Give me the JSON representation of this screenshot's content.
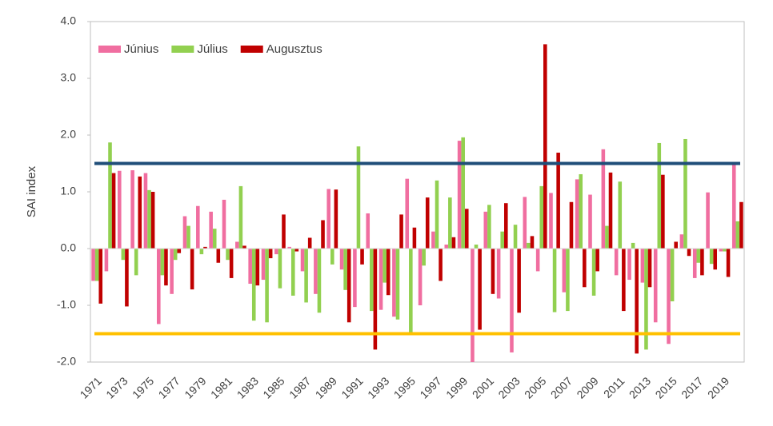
{
  "chart_data": {
    "type": "bar",
    "y_label": "SAI index",
    "categories": [
      "1971",
      null,
      "1973",
      null,
      "1975",
      null,
      "1977",
      null,
      "1979",
      null,
      "1981",
      null,
      "1983",
      null,
      "1985",
      null,
      "1987",
      null,
      "1989",
      null,
      "1991",
      null,
      "1993",
      null,
      "1995",
      null,
      "1997",
      null,
      "1999",
      null,
      "2001",
      null,
      "2003",
      null,
      "2005",
      null,
      "2007",
      null,
      "2009",
      null,
      "2011",
      null,
      "2013",
      null,
      "2015",
      null,
      "2017",
      null,
      "2019",
      null
    ],
    "series": [
      {
        "name": "Június",
        "color": "#f06ea0",
        "values": [
          -0.57,
          -0.4,
          1.37,
          1.38,
          1.33,
          -1.33,
          -0.8,
          0.57,
          0.75,
          0.65,
          0.86,
          0.12,
          -0.62,
          -0.55,
          -0.1,
          0.03,
          -0.4,
          -0.8,
          1.05,
          -0.37,
          -1.03,
          0.62,
          -1.08,
          -1.2,
          1.23,
          -1.0,
          0.3,
          0.07,
          1.9,
          -2.0,
          0.65,
          -0.88,
          -1.83,
          0.91,
          -0.4,
          0.98,
          -0.77,
          1.22,
          0.95,
          1.75,
          -0.47,
          -0.55,
          -0.6,
          -1.3,
          -1.68,
          0.25,
          -0.52,
          0.99,
          -0.05,
          1.5
        ]
      },
      {
        "name": "Július",
        "color": "#92d050",
        "values": [
          -0.57,
          1.87,
          -0.2,
          -0.47,
          1.03,
          -0.47,
          -0.2,
          0.4,
          -0.1,
          0.35,
          -0.2,
          1.1,
          -1.27,
          -1.3,
          -0.7,
          -0.83,
          -0.95,
          -1.13,
          -0.28,
          -0.73,
          1.8,
          -1.1,
          -0.6,
          -1.25,
          -1.5,
          -0.3,
          1.2,
          0.9,
          1.96,
          0.07,
          0.77,
          0.3,
          0.42,
          0.1,
          1.1,
          -1.12,
          -1.1,
          1.31,
          -0.83,
          0.4,
          1.18,
          0.1,
          -1.78,
          1.86,
          -0.93,
          1.93,
          -0.25,
          -0.27,
          -0.05,
          0.48
        ]
      },
      {
        "name": "Augusztus",
        "color": "#c00000",
        "values": [
          -0.97,
          1.33,
          -1.02,
          1.27,
          1.0,
          -0.65,
          -0.08,
          -0.72,
          0.03,
          -0.25,
          -0.52,
          0.05,
          -0.65,
          -0.17,
          0.6,
          -0.05,
          0.19,
          0.5,
          1.04,
          -1.3,
          -0.28,
          -1.78,
          -0.82,
          0.6,
          0.37,
          0.9,
          -0.57,
          0.2,
          0.7,
          -1.43,
          -0.8,
          0.8,
          -1.13,
          0.22,
          3.6,
          1.69,
          0.82,
          -0.68,
          -0.4,
          1.34,
          -1.1,
          -1.85,
          -0.68,
          1.3,
          0.12,
          -0.13,
          -0.47,
          -0.37,
          -0.5,
          0.82
        ]
      }
    ],
    "reference_lines": [
      {
        "value": 1.5,
        "color": "#1f4e79"
      },
      {
        "value": -1.5,
        "color": "#ffc000"
      }
    ],
    "ylim": [
      -2,
      4
    ],
    "yticks": [
      {
        "value": -2,
        "label": "-2.0"
      },
      {
        "value": -1,
        "label": "-1.0"
      },
      {
        "value": 0,
        "label": "0.0"
      },
      {
        "value": 1,
        "label": "1.0"
      },
      {
        "value": 2,
        "label": "2.0"
      },
      {
        "value": 3,
        "label": "3.0"
      },
      {
        "value": 4,
        "label": "4.0"
      }
    ],
    "legend": "top-left"
  }
}
